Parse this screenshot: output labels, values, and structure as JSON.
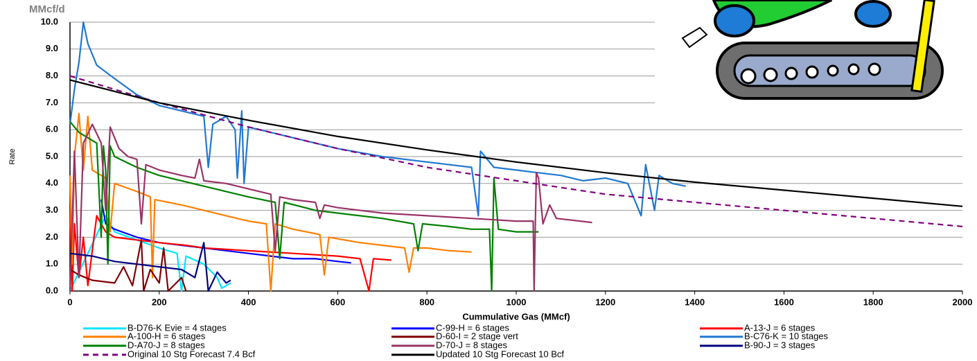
{
  "chart_data": {
    "type": "line",
    "title": "MMcf/d",
    "x_label": "Cummulative Gas (MMcf)",
    "y_label": "Rate",
    "xlim": [
      0,
      2000
    ],
    "xticks": [
      0,
      200,
      400,
      600,
      800,
      1000,
      1200,
      1400,
      1600,
      1800,
      2000
    ],
    "ylim": [
      0,
      10
    ],
    "yticks": [
      {
        "value": 0,
        "label": "0.0"
      },
      {
        "value": 1,
        "label": "1.0"
      },
      {
        "value": 2,
        "label": "2.0"
      },
      {
        "value": 3,
        "label": "3.0"
      },
      {
        "value": 4,
        "label": "4.0"
      },
      {
        "value": 5,
        "label": "5.0"
      },
      {
        "value": 6,
        "label": "6.0"
      },
      {
        "value": 7,
        "label": "7.0"
      },
      {
        "value": 8,
        "label": "8.0"
      },
      {
        "value": 9,
        "label": "9.0"
      },
      {
        "value": 10,
        "label": "10.0"
      }
    ],
    "grid": true,
    "legend": "bottom",
    "series": [
      {
        "name": "B-D76-K Evie = 4 stages",
        "color": "#00e5ff",
        "x": [
          0,
          80,
          100,
          150,
          200,
          240,
          250,
          260,
          300,
          330,
          340,
          360
        ],
        "values": [
          0,
          2.8,
          2.2,
          1.9,
          1.6,
          1.4,
          0,
          1.3,
          1.0,
          0.5,
          0.1,
          0.3
        ]
      },
      {
        "name": "C-99-H = 6 stages",
        "color": "#0000ff",
        "x": [
          70,
          80,
          100,
          150,
          200,
          250,
          300,
          350,
          400,
          450,
          500,
          550,
          600,
          630
        ],
        "values": [
          3.4,
          2.5,
          2.3,
          2.0,
          1.8,
          1.7,
          1.6,
          1.5,
          1.4,
          1.3,
          1.2,
          1.2,
          1.1,
          1.05
        ]
      },
      {
        "name": "A-13-J = 6 stages",
        "color": "#ff0000",
        "x": [
          0,
          5,
          10,
          20,
          30,
          40,
          60,
          80,
          100,
          150,
          200,
          260,
          300,
          400,
          500,
          600,
          650,
          670,
          680,
          720
        ],
        "values": [
          3.0,
          0,
          2.5,
          0.5,
          2.0,
          0.2,
          2.8,
          2.2,
          2.0,
          1.9,
          1.8,
          1.7,
          1.6,
          1.5,
          1.4,
          1.3,
          1.2,
          0,
          1.2,
          1.15
        ]
      },
      {
        "name": "A-100-H = 6 stages",
        "color": "#ff7f00",
        "x": [
          0,
          5,
          10,
          20,
          30,
          40,
          50,
          80,
          90,
          100,
          150,
          180,
          185,
          190,
          250,
          300,
          350,
          400,
          440,
          450,
          460,
          500,
          560,
          570,
          580,
          650,
          700,
          750,
          760,
          770,
          800,
          850,
          900
        ],
        "values": [
          4.3,
          1.0,
          5.0,
          6.6,
          4.5,
          6.5,
          4.5,
          4.2,
          2.2,
          4.0,
          3.7,
          3.5,
          0.5,
          3.4,
          3.2,
          3.0,
          2.8,
          2.6,
          2.5,
          0,
          2.5,
          2.3,
          2.1,
          0.6,
          2.0,
          1.8,
          1.7,
          1.6,
          0.7,
          1.6,
          1.6,
          1.5,
          1.45
        ]
      },
      {
        "name": "D-60-I = 2 stage vert",
        "color": "#800000",
        "x": [
          0,
          20,
          50,
          100,
          120,
          140,
          160,
          165,
          180,
          200,
          210,
          220,
          250,
          260
        ],
        "values": [
          0.8,
          0.6,
          0.4,
          0.3,
          0.9,
          0.2,
          1.9,
          0,
          0.8,
          0.3,
          1.6,
          0,
          0.5,
          0
        ]
      },
      {
        "name": "B-C76-K = 10 stages",
        "color": "#1f78d0",
        "x": [
          0,
          10,
          20,
          30,
          40,
          60,
          100,
          150,
          200,
          250,
          300,
          310,
          320,
          350,
          370,
          375,
          385,
          390,
          400,
          450,
          500,
          550,
          600,
          700,
          800,
          900,
          915,
          920,
          950,
          1000,
          1050,
          1100,
          1150,
          1200,
          1250,
          1280,
          1290,
          1310,
          1320,
          1350,
          1380
        ],
        "values": [
          6.2,
          7.5,
          8.5,
          10.0,
          9.2,
          8.4,
          7.9,
          7.3,
          6.9,
          6.7,
          6.5,
          4.6,
          6.2,
          6.5,
          6.0,
          4.2,
          6.7,
          4.0,
          6.1,
          5.9,
          5.7,
          5.5,
          5.3,
          5.0,
          4.8,
          4.6,
          2.8,
          5.2,
          4.6,
          4.5,
          4.4,
          4.3,
          4.1,
          4.2,
          4.0,
          2.8,
          4.7,
          3.0,
          4.3,
          4.0,
          3.9
        ]
      },
      {
        "name": "D-A70-J = 8 stages",
        "color": "#008000",
        "x": [
          0,
          20,
          40,
          60,
          70,
          75,
          80,
          85,
          90,
          100,
          150,
          200,
          250,
          300,
          350,
          400,
          460,
          470,
          480,
          550,
          600,
          700,
          770,
          780,
          790,
          850,
          900,
          940,
          945,
          950,
          960,
          1000,
          1050
        ],
        "values": [
          6.3,
          5.9,
          5.7,
          5.5,
          2.0,
          5.4,
          4.5,
          1.0,
          5.4,
          5.0,
          4.6,
          4.3,
          4.1,
          3.9,
          3.7,
          3.5,
          3.3,
          1.2,
          3.3,
          3.0,
          2.9,
          2.7,
          2.5,
          1.5,
          2.5,
          2.4,
          2.3,
          2.3,
          0,
          4.2,
          2.3,
          2.2,
          2.2
        ]
      },
      {
        "name": "D-70-J = 8 stages",
        "color": "#993366",
        "x": [
          0,
          10,
          20,
          30,
          50,
          70,
          80,
          90,
          110,
          130,
          150,
          160,
          170,
          200,
          250,
          280,
          290,
          300,
          350,
          400,
          450,
          460,
          470,
          500,
          550,
          560,
          570,
          600,
          700,
          800,
          900,
          1000,
          1038,
          1040,
          1045,
          1050,
          1060,
          1075,
          1090,
          1170
        ],
        "values": [
          0,
          5.2,
          0.5,
          5.5,
          6.2,
          5.5,
          3.0,
          6.1,
          5.3,
          5.0,
          4.9,
          2.5,
          4.7,
          4.5,
          4.3,
          4.2,
          4.9,
          4.1,
          4.0,
          3.8,
          3.6,
          1.5,
          3.5,
          3.4,
          3.3,
          2.7,
          3.2,
          3.1,
          2.9,
          2.8,
          2.7,
          2.6,
          2.6,
          0,
          4.4,
          4.2,
          2.5,
          3.2,
          2.7,
          2.55
        ]
      },
      {
        "name": "B-90-J = 3 stages",
        "color": "#000080",
        "x": [
          0,
          50,
          100,
          150,
          200,
          250,
          280,
          300,
          310,
          330,
          350,
          360
        ],
        "values": [
          1.4,
          1.3,
          1.1,
          1.0,
          0.9,
          0.8,
          0.5,
          1.8,
          0,
          0.7,
          0.3,
          0.4
        ]
      },
      {
        "name": "Original 10 Stg Forecast 7.4 Bcf",
        "color": "#800080",
        "dashed": true,
        "x": [
          0,
          200,
          400,
          600,
          800,
          1000,
          1200,
          1400,
          1600,
          1800,
          2000
        ],
        "values": [
          8.0,
          7.0,
          6.1,
          5.3,
          4.6,
          4.1,
          3.6,
          3.3,
          3.0,
          2.7,
          2.4
        ]
      },
      {
        "name": "Updated 10 Stg Forecast 10 Bcf",
        "color": "#000000",
        "x": [
          0,
          200,
          400,
          600,
          800,
          1000,
          1200,
          1400,
          1600,
          1800,
          2000
        ],
        "values": [
          7.85,
          7.0,
          6.35,
          5.75,
          5.25,
          4.8,
          4.4,
          4.05,
          3.75,
          3.45,
          3.15
        ]
      }
    ]
  }
}
